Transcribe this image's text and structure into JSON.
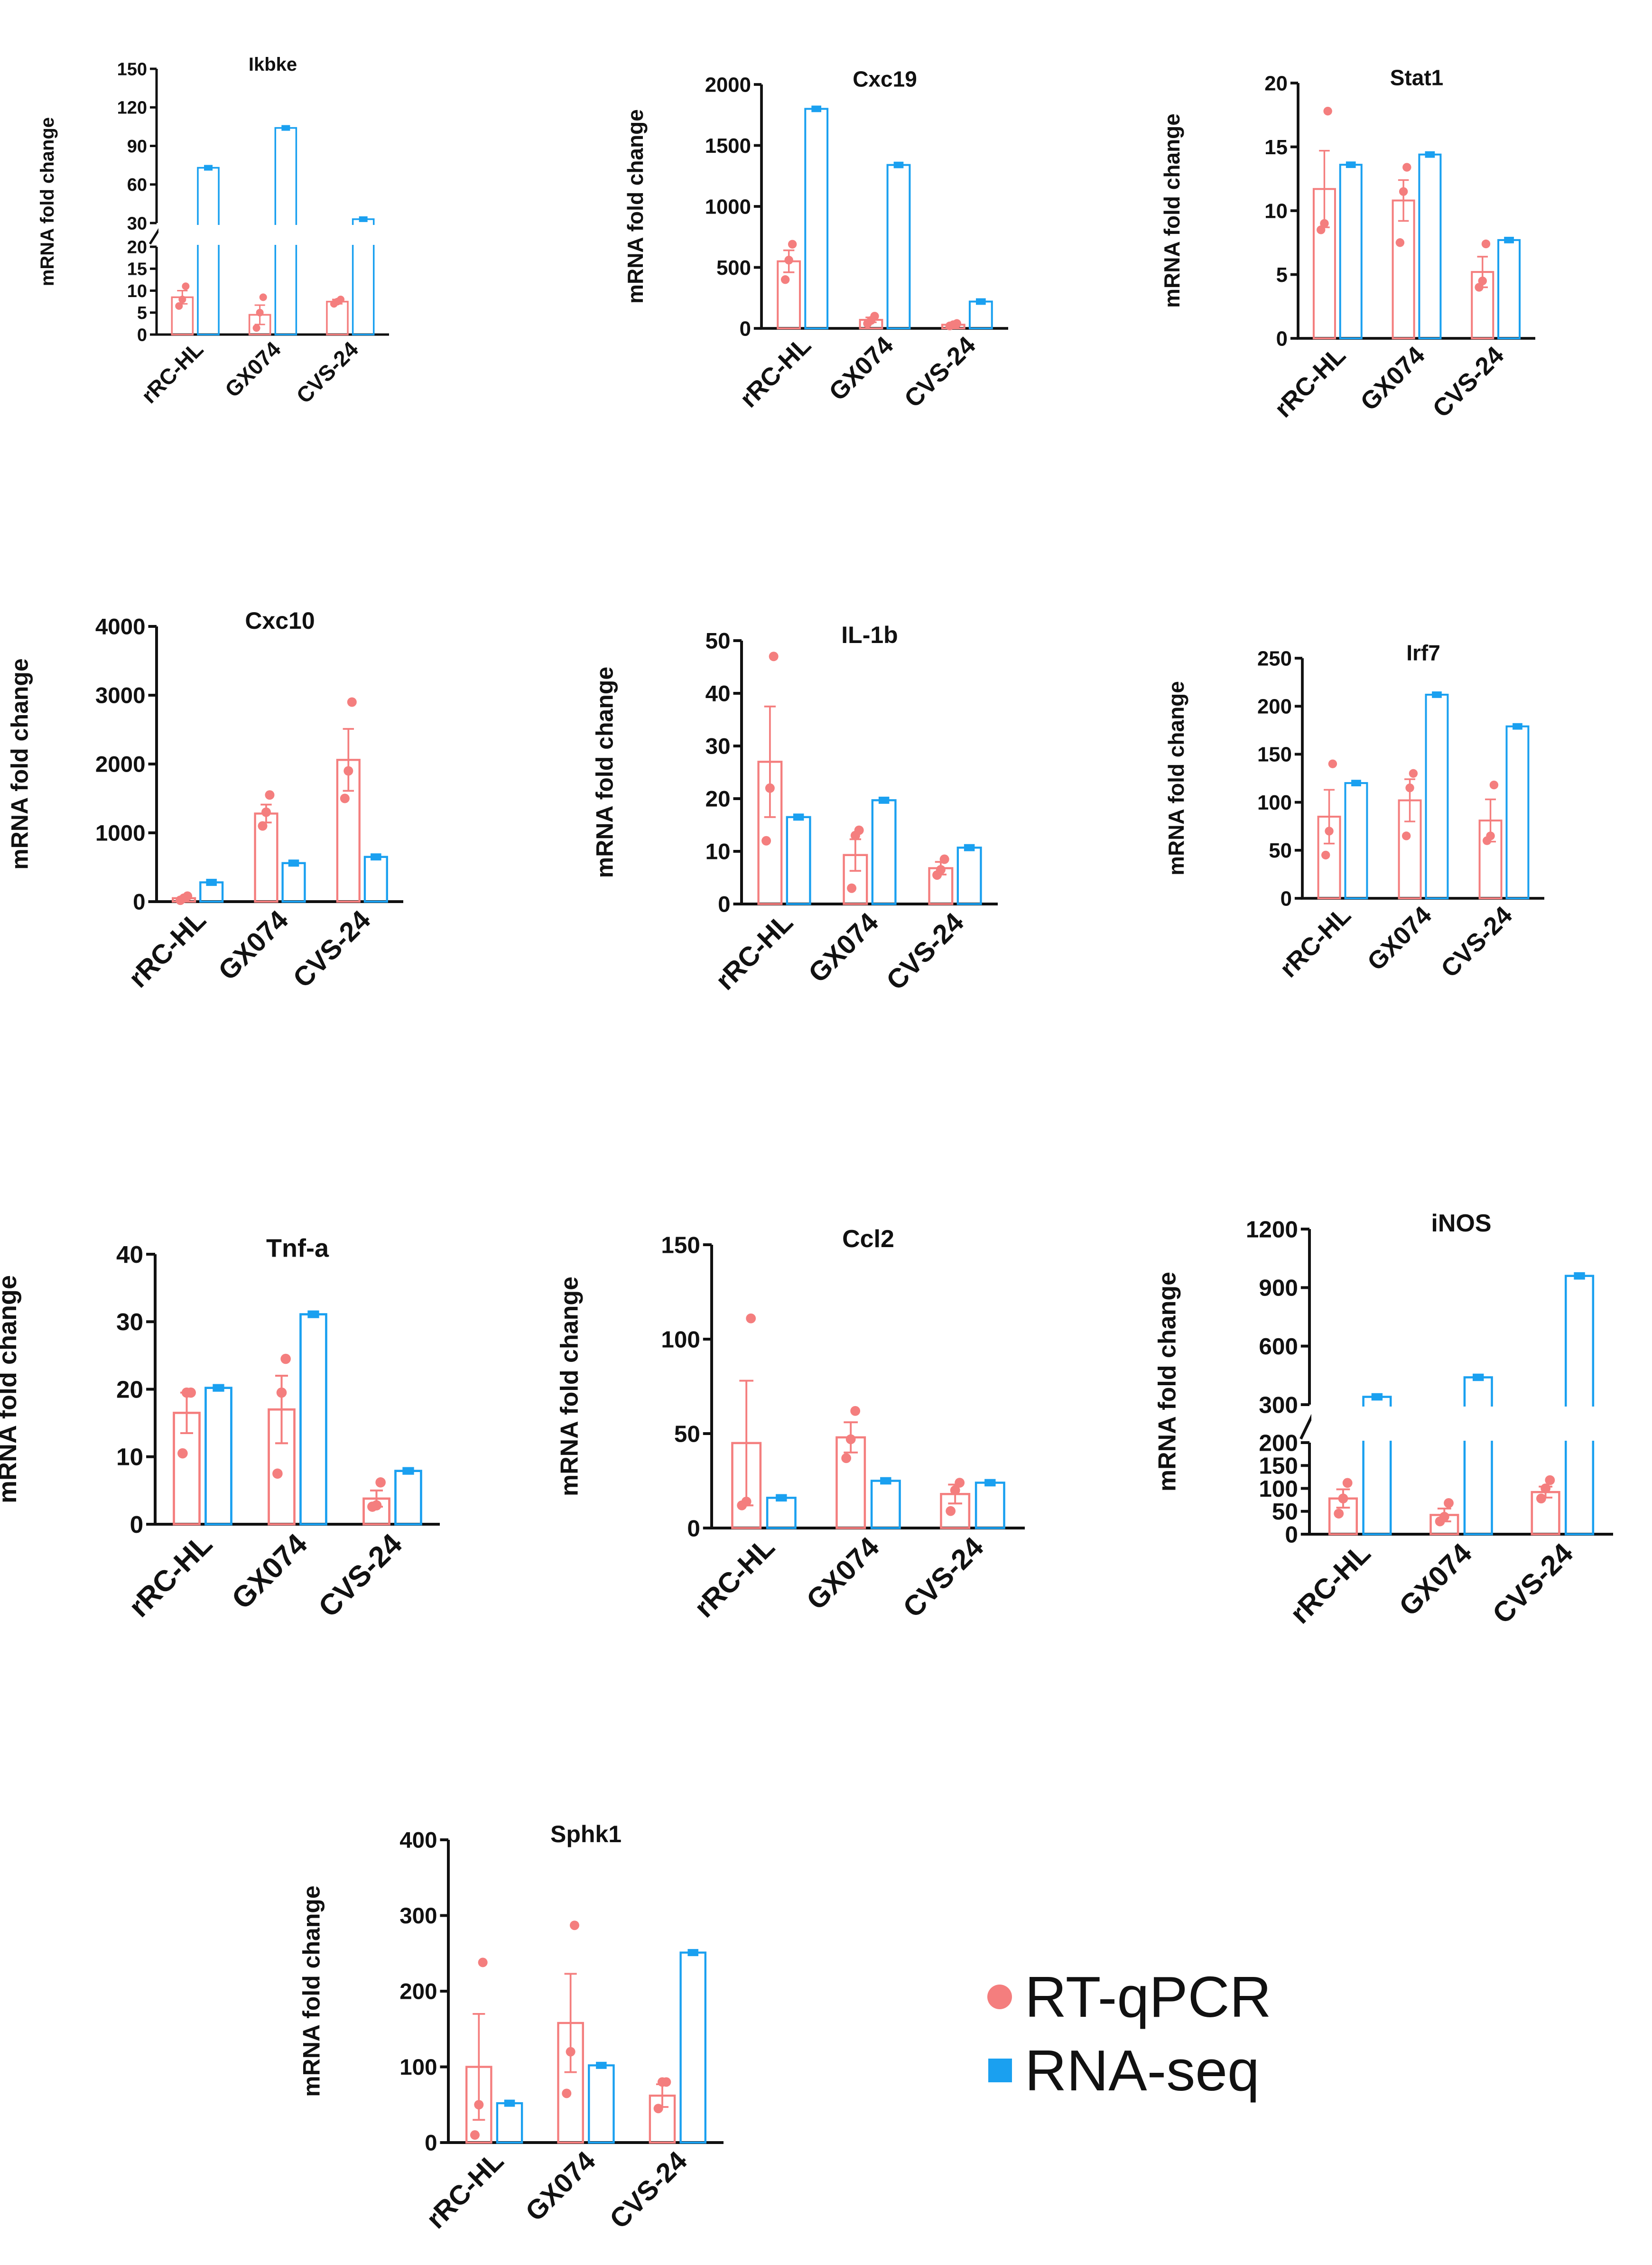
{
  "figure": {
    "y_axis_label": "mRNA fold change"
  },
  "legend": {
    "items": [
      {
        "label": "RT-qPCR",
        "color": "#F47E7E",
        "marker": "circle"
      },
      {
        "label": "RNA-seq",
        "color": "#1AA0F0",
        "marker": "square"
      }
    ]
  },
  "colors": {
    "rtqpcr": "#F47E7E",
    "rnaseq": "#1AA0F0",
    "axis": "#111111"
  },
  "chart_data": [
    {
      "type": "bar",
      "title": "Ikbke",
      "ylabel": "mRNA fold change",
      "categories": [
        "rRC-HL",
        "GX074",
        "CVS-24"
      ],
      "axis_break": {
        "lower": [
          0,
          20
        ],
        "upper": [
          30,
          150
        ]
      },
      "yticks_lower": [
        0,
        5,
        10,
        15,
        20
      ],
      "yticks_upper": [
        30,
        60,
        90,
        120,
        150
      ],
      "series": [
        {
          "name": "RT-qPCR",
          "values": [
            8.5,
            4.5,
            7.5
          ],
          "sem": [
            1.5,
            2.2,
            0.5
          ],
          "points": [
            [
              6.5,
              8.0,
              11.0
            ],
            [
              1.5,
              5.0,
              8.5
            ],
            [
              7.0,
              7.5,
              8.0
            ]
          ]
        },
        {
          "name": "RNA-seq",
          "values": [
            73,
            104,
            33
          ]
        }
      ]
    },
    {
      "type": "bar",
      "title": "Cxc19",
      "ylabel": "mRNA fold change",
      "categories": [
        "rRC-HL",
        "GX074",
        "CVS-24"
      ],
      "ylim": [
        0,
        2000
      ],
      "yticks": [
        0,
        500,
        1000,
        1500,
        2000
      ],
      "series": [
        {
          "name": "RT-qPCR",
          "values": [
            550,
            70,
            30
          ],
          "sem": [
            90,
            20,
            10
          ],
          "points": [
            [
              400,
              560,
              690
            ],
            [
              40,
              65,
              100
            ],
            [
              20,
              30,
              40
            ]
          ]
        },
        {
          "name": "RNA-seq",
          "values": [
            1800,
            1340,
            220
          ]
        }
      ]
    },
    {
      "type": "bar",
      "title": "Stat1",
      "ylabel": "mRNA fold change",
      "categories": [
        "rRC-HL",
        "GX074",
        "CVS-24"
      ],
      "ylim": [
        0,
        20
      ],
      "yticks": [
        0,
        5,
        10,
        15,
        20
      ],
      "series": [
        {
          "name": "RT-qPCR",
          "values": [
            11.7,
            10.8,
            5.2
          ],
          "sem": [
            3.0,
            1.6,
            1.2
          ],
          "points": [
            [
              8.5,
              9.0,
              17.8
            ],
            [
              7.5,
              11.5,
              13.4
            ],
            [
              4.0,
              4.5,
              7.4
            ]
          ]
        },
        {
          "name": "RNA-seq",
          "values": [
            13.6,
            14.4,
            7.7
          ]
        }
      ]
    },
    {
      "type": "bar",
      "title": "Cxc10",
      "ylabel": "mRNA fold change",
      "categories": [
        "rRC-HL",
        "GX074",
        "CVS-24"
      ],
      "ylim": [
        0,
        4000
      ],
      "yticks": [
        0,
        1000,
        2000,
        3000,
        4000
      ],
      "series": [
        {
          "name": "RT-qPCR",
          "values": [
            50,
            1280,
            2060
          ],
          "sem": [
            20,
            130,
            450
          ],
          "points": [
            [
              20,
              50,
              80
            ],
            [
              1100,
              1300,
              1550
            ],
            [
              1500,
              1900,
              2900
            ]
          ]
        },
        {
          "name": "RNA-seq",
          "values": [
            280,
            560,
            650
          ]
        }
      ]
    },
    {
      "type": "bar",
      "title": "IL-1b",
      "ylabel": "mRNA fold change",
      "categories": [
        "rRC-HL",
        "GX074",
        "CVS-24"
      ],
      "ylim": [
        0,
        50
      ],
      "yticks": [
        0,
        10,
        20,
        30,
        40,
        50
      ],
      "series": [
        {
          "name": "RT-qPCR",
          "values": [
            27,
            9.3,
            6.8
          ],
          "sem": [
            10.5,
            3.0,
            1.2
          ],
          "points": [
            [
              12,
              22,
              47
            ],
            [
              3,
              13,
              14
            ],
            [
              5.5,
              6.5,
              8.5
            ]
          ]
        },
        {
          "name": "RNA-seq",
          "values": [
            16.5,
            19.7,
            10.7
          ]
        }
      ]
    },
    {
      "type": "bar",
      "title": "Irf7",
      "ylabel": "mRNA fold change",
      "categories": [
        "rRC-HL",
        "GX074",
        "CVS-24"
      ],
      "ylim": [
        0,
        250
      ],
      "yticks": [
        0,
        50,
        100,
        150,
        200,
        250
      ],
      "series": [
        {
          "name": "RT-qPCR",
          "values": [
            85,
            102,
            81
          ],
          "sem": [
            28,
            22,
            22
          ],
          "points": [
            [
              45,
              70,
              140
            ],
            [
              65,
              115,
              130
            ],
            [
              60,
              65,
              118
            ]
          ]
        },
        {
          "name": "RNA-seq",
          "values": [
            120,
            212,
            179
          ]
        }
      ]
    },
    {
      "type": "bar",
      "title": "Tnf-a",
      "ylabel": "mRNA fold change",
      "categories": [
        "rRC-HL",
        "GX074",
        "CVS-24"
      ],
      "ylim": [
        0,
        40
      ],
      "yticks": [
        0,
        10,
        20,
        30,
        40
      ],
      "series": [
        {
          "name": "RT-qPCR",
          "values": [
            16.5,
            17,
            3.8
          ],
          "sem": [
            3.0,
            5.0,
            1.2
          ],
          "points": [
            [
              10.5,
              19.5,
              19.5
            ],
            [
              7.5,
              19.5,
              24.5
            ],
            [
              2.6,
              2.8,
              6.2
            ]
          ]
        },
        {
          "name": "RNA-seq",
          "values": [
            20.2,
            31.1,
            7.9
          ]
        }
      ]
    },
    {
      "type": "bar",
      "title": "Ccl2",
      "ylabel": "mRNA fold change",
      "categories": [
        "rRC-HL",
        "GX074",
        "CVS-24"
      ],
      "ylim": [
        0,
        150
      ],
      "yticks": [
        0,
        50,
        100,
        150
      ],
      "series": [
        {
          "name": "RT-qPCR",
          "values": [
            45,
            48,
            18
          ],
          "sem": [
            33,
            8,
            5
          ],
          "points": [
            [
              12,
              14,
              111
            ],
            [
              37,
              47,
              62
            ],
            [
              9,
              20,
              24
            ]
          ]
        },
        {
          "name": "RNA-seq",
          "values": [
            16,
            25,
            24
          ]
        }
      ]
    },
    {
      "type": "bar",
      "title": "iNOS",
      "ylabel": "mRNA fold change",
      "categories": [
        "rRC-HL",
        "GX074",
        "CVS-24"
      ],
      "axis_break": {
        "lower": [
          0,
          200
        ],
        "upper": [
          300,
          1200
        ]
      },
      "yticks_lower": [
        0,
        50,
        100,
        150,
        200
      ],
      "yticks_upper": [
        300,
        600,
        900,
        1200
      ],
      "series": [
        {
          "name": "RT-qPCR",
          "values": [
            78,
            42,
            92
          ],
          "sem": [
            20,
            14,
            12
          ],
          "points": [
            [
              45,
              78,
              112
            ],
            [
              28,
              38,
              68
            ],
            [
              78,
              100,
              118
            ]
          ]
        },
        {
          "name": "RNA-seq",
          "values": [
            340,
            440,
            960
          ]
        }
      ]
    },
    {
      "type": "bar",
      "title": "Sphk1",
      "ylabel": "mRNA fold change",
      "categories": [
        "rRC-HL",
        "GX074",
        "CVS-24"
      ],
      "ylim": [
        0,
        400
      ],
      "yticks": [
        0,
        100,
        200,
        300,
        400
      ],
      "series": [
        {
          "name": "RT-qPCR",
          "values": [
            100,
            158,
            62
          ],
          "sem": [
            70,
            65,
            15
          ],
          "points": [
            [
              10,
              50,
              238
            ],
            [
              65,
              120,
              287
            ],
            [
              45,
              80,
              80
            ]
          ]
        },
        {
          "name": "RNA-seq",
          "values": [
            52,
            102,
            251
          ]
        }
      ]
    }
  ]
}
